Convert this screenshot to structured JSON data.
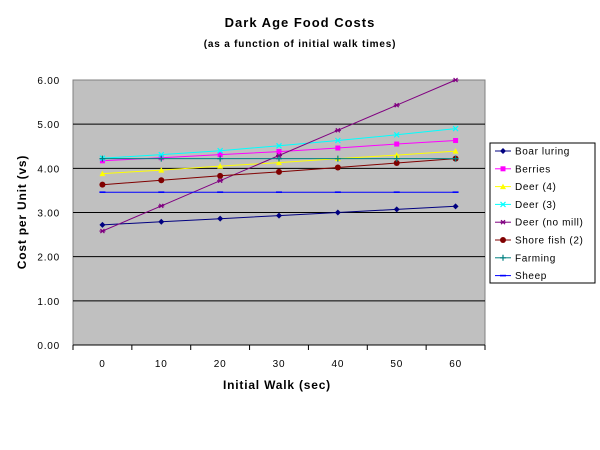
{
  "chart_data": {
    "type": "line",
    "title": "Dark Age Food Costs",
    "subtitle": "(as a function of initial walk times)",
    "xlabel": "Initial Walk (sec)",
    "ylabel": "Cost per Unit (vs)",
    "x": [
      0,
      10,
      20,
      30,
      40,
      50,
      60
    ],
    "x_tick_labels": [
      "0",
      "10",
      "20",
      "30",
      "40",
      "50",
      "60"
    ],
    "xlim": [
      -5,
      65
    ],
    "ylim": [
      0,
      6
    ],
    "y_tick_labels": [
      "0.00",
      "1.00",
      "2.00",
      "3.00",
      "4.00",
      "5.00",
      "6.00"
    ],
    "grid": true,
    "plot_background": "#c0c0c0",
    "legend_position": "right",
    "series": [
      {
        "name": "Boar luring",
        "color": "#000080",
        "marker": "diamond",
        "values": [
          2.72,
          2.79,
          2.86,
          2.93,
          3.0,
          3.07,
          3.14
        ]
      },
      {
        "name": "Berries",
        "color": "#ff00ff",
        "marker": "square",
        "values": [
          4.17,
          4.24,
          4.31,
          4.38,
          4.46,
          4.55,
          4.63
        ]
      },
      {
        "name": "Deer (4)",
        "color": "#ffff00",
        "marker": "triangle",
        "values": [
          3.88,
          3.96,
          4.05,
          4.13,
          4.22,
          4.3,
          4.39
        ]
      },
      {
        "name": "Deer (3)",
        "color": "#00ffff",
        "marker": "x",
        "values": [
          4.23,
          4.31,
          4.4,
          4.51,
          4.63,
          4.76,
          4.9
        ]
      },
      {
        "name": "Deer (no mill)",
        "color": "#800080",
        "marker": "star",
        "values": [
          2.58,
          3.15,
          3.72,
          4.29,
          4.86,
          5.43,
          6.0
        ]
      },
      {
        "name": "Shore fish (2)",
        "color": "#800000",
        "marker": "circle",
        "values": [
          3.63,
          3.73,
          3.83,
          3.92,
          4.02,
          4.12,
          4.22
        ]
      },
      {
        "name": "Farming",
        "color": "#008080",
        "marker": "plus",
        "values": [
          4.22,
          4.22,
          4.22,
          4.22,
          4.22,
          4.22,
          4.22
        ]
      },
      {
        "name": "Sheep",
        "color": "#0000ff",
        "marker": "dash",
        "values": [
          3.46,
          3.46,
          3.46,
          3.46,
          3.46,
          3.46,
          3.46
        ]
      }
    ]
  }
}
